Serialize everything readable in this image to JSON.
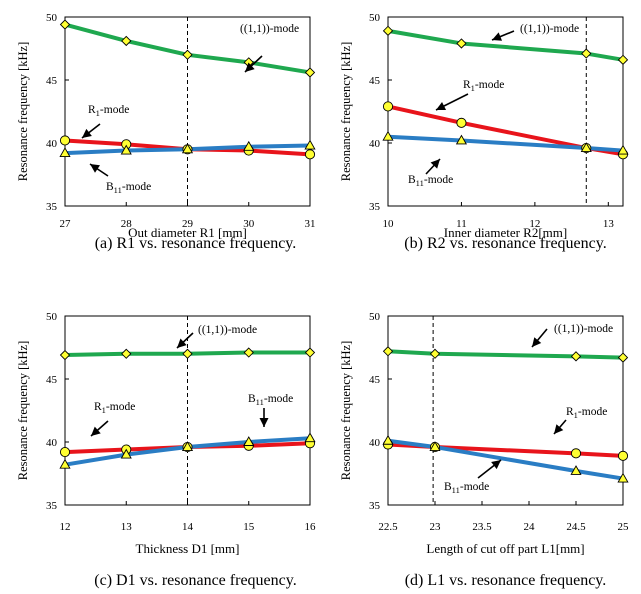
{
  "chart_data": [
    {
      "type": "line",
      "caption": "(a) R1 vs. resonance frequency.",
      "xlabel": "Out diameter R1 [mm]",
      "ylabel": "Resonance frequency [kHz]",
      "xlim": [
        27,
        31
      ],
      "ylim": [
        35,
        50
      ],
      "xticks": [
        "27",
        "28",
        "29",
        "30",
        "31"
      ],
      "yticks": [
        "35",
        "40",
        "45",
        "50"
      ],
      "vline": 29,
      "x": [
        27,
        28,
        29,
        30,
        31
      ],
      "series": [
        {
          "name": "((1,1))-mode",
          "color": "#1fa84f",
          "marker": "diamond",
          "values": [
            49.4,
            48.1,
            47.0,
            46.4,
            45.6
          ]
        },
        {
          "name": "R1-mode",
          "color": "#e8141b",
          "marker": "circle",
          "values": [
            40.2,
            39.9,
            39.5,
            39.4,
            39.1
          ]
        },
        {
          "name": "B11-mode",
          "color": "#2a7dc4",
          "marker": "triangle",
          "values": [
            39.2,
            39.4,
            39.5,
            39.7,
            39.8
          ]
        }
      ]
    },
    {
      "type": "line",
      "caption": "(b) R2 vs. resonance frequency.",
      "xlabel": "Inner diameter R2[mm]",
      "ylabel": "Resonance frequency [kHz]",
      "xlim": [
        10,
        13.2
      ],
      "ylim": [
        35,
        50
      ],
      "xticks": [
        "10",
        "11",
        "12",
        "13"
      ],
      "yticks": [
        "35",
        "40",
        "45",
        "50"
      ],
      "vline": 12.7,
      "x": [
        10,
        11,
        12.7,
        13.2
      ],
      "series": [
        {
          "name": "((1,1))-mode",
          "color": "#1fa84f",
          "marker": "diamond",
          "values": [
            48.9,
            47.9,
            47.1,
            46.6
          ]
        },
        {
          "name": "R1-mode",
          "color": "#e8141b",
          "marker": "circle",
          "values": [
            42.9,
            41.6,
            39.6,
            39.1
          ]
        },
        {
          "name": "B11-mode",
          "color": "#2a7dc4",
          "marker": "triangle",
          "values": [
            40.5,
            40.2,
            39.6,
            39.4
          ]
        }
      ]
    },
    {
      "type": "line",
      "caption": "(c) D1 vs. resonance frequency.",
      "xlabel": "Thickness D1 [mm]",
      "ylabel": "Resonance frequency [kHz]",
      "xlim": [
        12,
        16
      ],
      "ylim": [
        35,
        50
      ],
      "xticks": [
        "12",
        "13",
        "14",
        "15",
        "16"
      ],
      "yticks": [
        "35",
        "40",
        "45",
        "50"
      ],
      "vline": 14,
      "x": [
        12,
        13,
        14,
        15,
        16
      ],
      "series": [
        {
          "name": "((1,1))-mode",
          "color": "#1fa84f",
          "marker": "diamond",
          "values": [
            46.9,
            47.0,
            47.0,
            47.1,
            47.1
          ]
        },
        {
          "name": "R1-mode",
          "color": "#e8141b",
          "marker": "circle",
          "values": [
            39.2,
            39.4,
            39.6,
            39.7,
            39.9
          ]
        },
        {
          "name": "B11-mode",
          "color": "#2a7dc4",
          "marker": "triangle",
          "values": [
            38.2,
            39.0,
            39.6,
            40.0,
            40.3
          ]
        }
      ]
    },
    {
      "type": "line",
      "caption": "(d) L1 vs. resonance frequency.",
      "xlabel": "Length of cut off part L1[mm]",
      "ylabel": "Resonance frequency [kHz]",
      "xlim": [
        22.5,
        25
      ],
      "ylim": [
        35,
        50
      ],
      "xticks": [
        "22.5",
        "23",
        "23.5",
        "24",
        "24.5",
        "25"
      ],
      "yticks": [
        "35",
        "40",
        "45",
        "50"
      ],
      "vline": 22.98,
      "x": [
        22.5,
        23,
        24.5,
        25
      ],
      "series": [
        {
          "name": "((1,1))-mode",
          "color": "#1fa84f",
          "marker": "diamond",
          "values": [
            47.2,
            47.0,
            46.8,
            46.7
          ]
        },
        {
          "name": "R1-mode",
          "color": "#e8141b",
          "marker": "circle",
          "values": [
            39.8,
            39.6,
            39.1,
            38.9
          ]
        },
        {
          "name": "B11-mode",
          "color": "#2a7dc4",
          "marker": "triangle",
          "values": [
            40.1,
            39.6,
            37.7,
            37.1
          ]
        }
      ]
    }
  ]
}
